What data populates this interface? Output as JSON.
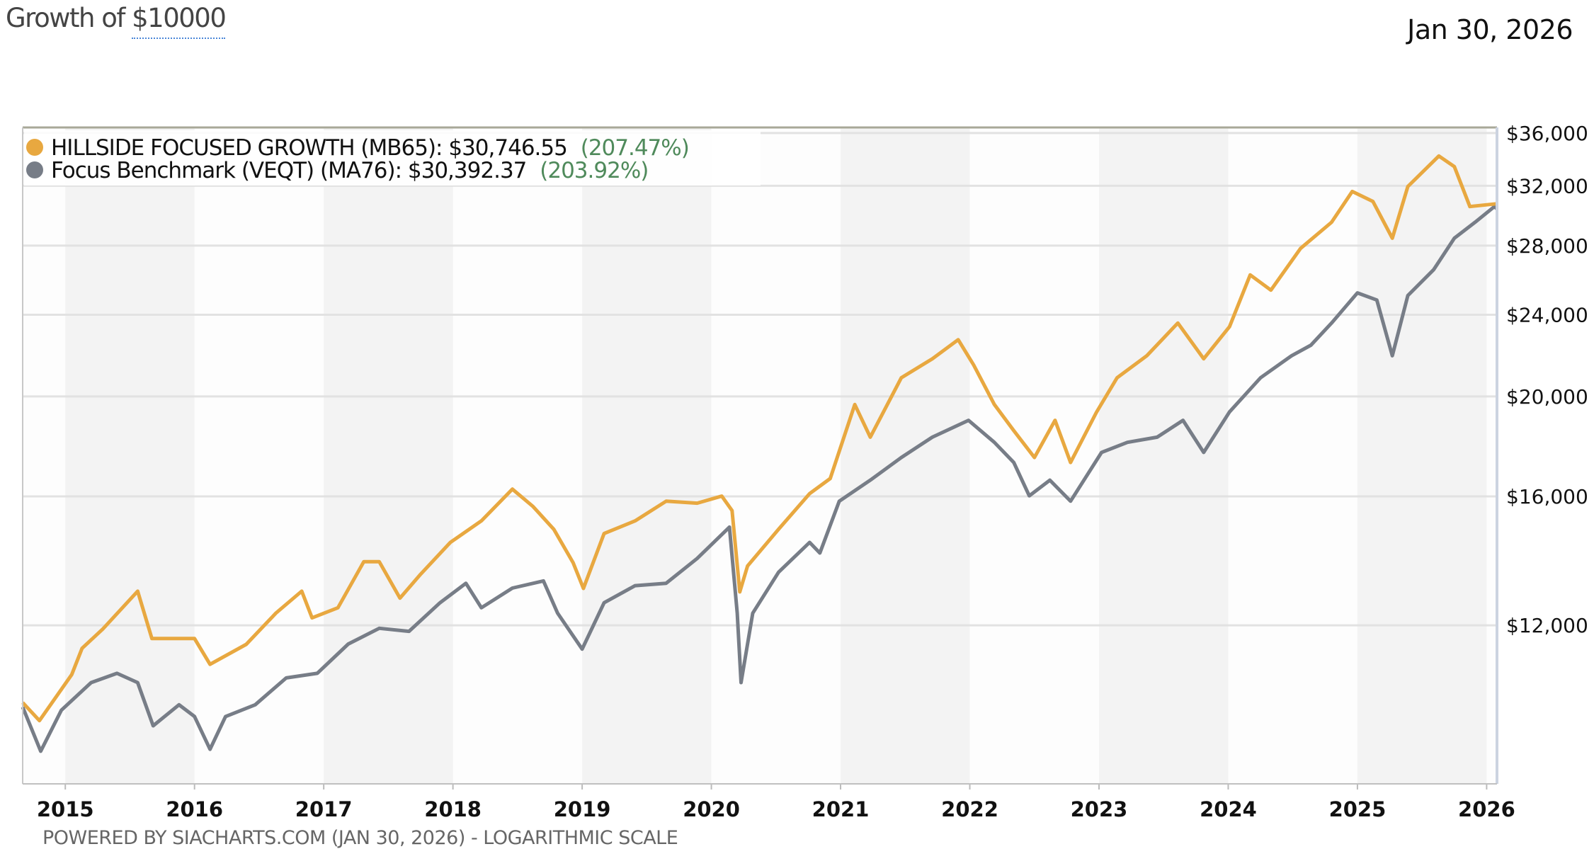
{
  "header": {
    "title_prefix": "Growth of ",
    "title_amount": "$10000",
    "date": "Jan 30, 2026"
  },
  "footer": "POWERED BY SIACHARTS.COM (JAN 30, 2026) - LOGARITHMIC SCALE",
  "chart_data": {
    "type": "line",
    "title": "Growth of $10000",
    "scale": "logarithmic",
    "xlim": [
      2014.67,
      2026.08
    ],
    "ylim": [
      8424,
      36450
    ],
    "x_ticks": [
      2015,
      2016,
      2017,
      2018,
      2019,
      2020,
      2021,
      2022,
      2023,
      2024,
      2025,
      2026
    ],
    "x_tick_labels": [
      "2015",
      "2016",
      "2017",
      "2018",
      "2019",
      "2020",
      "2021",
      "2022",
      "2023",
      "2024",
      "2025",
      "2026"
    ],
    "y_ticks": [
      12000,
      16000,
      20000,
      24000,
      28000,
      32000,
      36000
    ],
    "y_tick_labels": [
      "$12,000",
      "$16,000",
      "$20,000",
      "$24,000",
      "$28,000",
      "$32,000",
      "$36,000"
    ],
    "grid": true,
    "legend_placement": "top-left",
    "series": [
      {
        "name": "HILLSIDE FOCUSED GROWTH (MB65)",
        "legend_value": "$30,746.55",
        "legend_pct": "(207.47%)",
        "color": "#e8a840",
        "points": [
          [
            2014.67,
            10100
          ],
          [
            2014.8,
            9700
          ],
          [
            2015.05,
            10750
          ],
          [
            2015.13,
            11400
          ],
          [
            2015.29,
            11900
          ],
          [
            2015.56,
            12950
          ],
          [
            2015.67,
            11650
          ],
          [
            2016.0,
            11650
          ],
          [
            2016.12,
            11000
          ],
          [
            2016.4,
            11500
          ],
          [
            2016.63,
            12330
          ],
          [
            2016.83,
            12950
          ],
          [
            2016.91,
            12200
          ],
          [
            2017.11,
            12480
          ],
          [
            2017.31,
            13830
          ],
          [
            2017.43,
            13830
          ],
          [
            2017.59,
            12750
          ],
          [
            2017.75,
            13450
          ],
          [
            2017.98,
            14440
          ],
          [
            2018.22,
            15150
          ],
          [
            2018.46,
            16260
          ],
          [
            2018.62,
            15640
          ],
          [
            2018.78,
            14870
          ],
          [
            2018.93,
            13800
          ],
          [
            2019.01,
            13030
          ],
          [
            2019.17,
            14730
          ],
          [
            2019.41,
            15150
          ],
          [
            2019.65,
            15830
          ],
          [
            2019.89,
            15760
          ],
          [
            2020.08,
            16010
          ],
          [
            2020.16,
            15500
          ],
          [
            2020.22,
            12930
          ],
          [
            2020.28,
            13700
          ],
          [
            2020.52,
            14870
          ],
          [
            2020.76,
            16100
          ],
          [
            2020.92,
            16650
          ],
          [
            2021.11,
            19640
          ],
          [
            2021.23,
            18260
          ],
          [
            2021.47,
            20850
          ],
          [
            2021.71,
            21750
          ],
          [
            2021.91,
            22700
          ],
          [
            2022.03,
            21450
          ],
          [
            2022.19,
            19640
          ],
          [
            2022.34,
            18530
          ],
          [
            2022.5,
            17450
          ],
          [
            2022.66,
            18960
          ],
          [
            2022.78,
            17260
          ],
          [
            2022.98,
            19300
          ],
          [
            2023.14,
            20850
          ],
          [
            2023.37,
            21900
          ],
          [
            2023.61,
            23560
          ],
          [
            2023.81,
            21750
          ],
          [
            2024.01,
            23370
          ],
          [
            2024.17,
            26230
          ],
          [
            2024.33,
            25350
          ],
          [
            2024.56,
            27830
          ],
          [
            2024.8,
            29500
          ],
          [
            2024.96,
            31600
          ],
          [
            2025.12,
            30900
          ],
          [
            2025.27,
            28470
          ],
          [
            2025.39,
            31950
          ],
          [
            2025.63,
            34200
          ],
          [
            2025.75,
            33400
          ],
          [
            2025.87,
            30550
          ],
          [
            2026.08,
            30746.55
          ]
        ]
      },
      {
        "name": "Focus Benchmark (VEQT) (MA76)",
        "legend_value": "$30,392.37",
        "legend_pct": "(203.92%)",
        "color": "#777d87",
        "points": [
          [
            2014.67,
            10000
          ],
          [
            2014.81,
            9060
          ],
          [
            2014.97,
            9930
          ],
          [
            2015.2,
            10560
          ],
          [
            2015.4,
            10780
          ],
          [
            2015.56,
            10560
          ],
          [
            2015.68,
            9590
          ],
          [
            2015.88,
            10050
          ],
          [
            2016.0,
            9790
          ],
          [
            2016.12,
            9100
          ],
          [
            2016.24,
            9790
          ],
          [
            2016.47,
            10050
          ],
          [
            2016.71,
            10670
          ],
          [
            2016.95,
            10780
          ],
          [
            2017.19,
            11510
          ],
          [
            2017.43,
            11920
          ],
          [
            2017.66,
            11840
          ],
          [
            2017.9,
            12620
          ],
          [
            2018.1,
            13180
          ],
          [
            2018.22,
            12480
          ],
          [
            2018.46,
            13040
          ],
          [
            2018.7,
            13250
          ],
          [
            2018.81,
            12330
          ],
          [
            2019.0,
            11380
          ],
          [
            2019.17,
            12620
          ],
          [
            2019.41,
            13110
          ],
          [
            2019.65,
            13180
          ],
          [
            2019.89,
            13930
          ],
          [
            2020.14,
            14940
          ],
          [
            2020.2,
            12330
          ],
          [
            2020.23,
            10560
          ],
          [
            2020.32,
            12330
          ],
          [
            2020.52,
            13510
          ],
          [
            2020.76,
            14440
          ],
          [
            2020.84,
            14100
          ],
          [
            2020.99,
            15830
          ],
          [
            2021.23,
            16590
          ],
          [
            2021.47,
            17450
          ],
          [
            2021.71,
            18260
          ],
          [
            2021.99,
            18960
          ],
          [
            2022.19,
            18050
          ],
          [
            2022.34,
            17260
          ],
          [
            2022.46,
            16020
          ],
          [
            2022.62,
            16590
          ],
          [
            2022.78,
            15830
          ],
          [
            2023.02,
            17650
          ],
          [
            2023.22,
            18050
          ],
          [
            2023.45,
            18260
          ],
          [
            2023.65,
            18960
          ],
          [
            2023.81,
            17650
          ],
          [
            2024.01,
            19320
          ],
          [
            2024.25,
            20850
          ],
          [
            2024.49,
            21900
          ],
          [
            2024.64,
            22420
          ],
          [
            2024.8,
            23560
          ],
          [
            2025.0,
            25200
          ],
          [
            2025.15,
            24800
          ],
          [
            2025.27,
            21900
          ],
          [
            2025.39,
            25050
          ],
          [
            2025.59,
            26540
          ],
          [
            2025.75,
            28470
          ],
          [
            2025.91,
            29500
          ],
          [
            2026.06,
            30550
          ],
          [
            2026.08,
            30392.37
          ]
        ]
      }
    ]
  }
}
